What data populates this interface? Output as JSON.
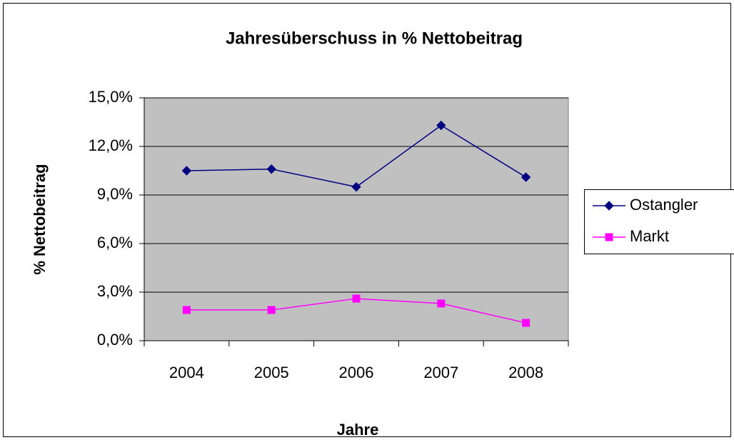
{
  "chart_data": {
    "type": "line",
    "title": "Jahresüberschuss in % Nettobeitrag",
    "xlabel": "Jahre",
    "ylabel": "% Nettobeitrag",
    "categories": [
      "2004",
      "2005",
      "2006",
      "2007",
      "2008"
    ],
    "series": [
      {
        "name": "Ostangler",
        "color": "#000080",
        "marker": "diamond",
        "values": [
          10.5,
          10.6,
          9.5,
          13.3,
          10.1
        ]
      },
      {
        "name": "Markt",
        "color": "#ff00ff",
        "marker": "square",
        "values": [
          1.9,
          1.9,
          2.6,
          2.3,
          1.1
        ]
      }
    ],
    "ylim": [
      0,
      15
    ],
    "yticks": [
      {
        "value": 0,
        "label": "0,0%"
      },
      {
        "value": 3,
        "label": "3,0%"
      },
      {
        "value": 6,
        "label": "6,0%"
      },
      {
        "value": 9,
        "label": "9,0%"
      },
      {
        "value": 12,
        "label": "12,0%"
      },
      {
        "value": 15,
        "label": "15,0%"
      }
    ],
    "grid": true,
    "legend": "right"
  }
}
